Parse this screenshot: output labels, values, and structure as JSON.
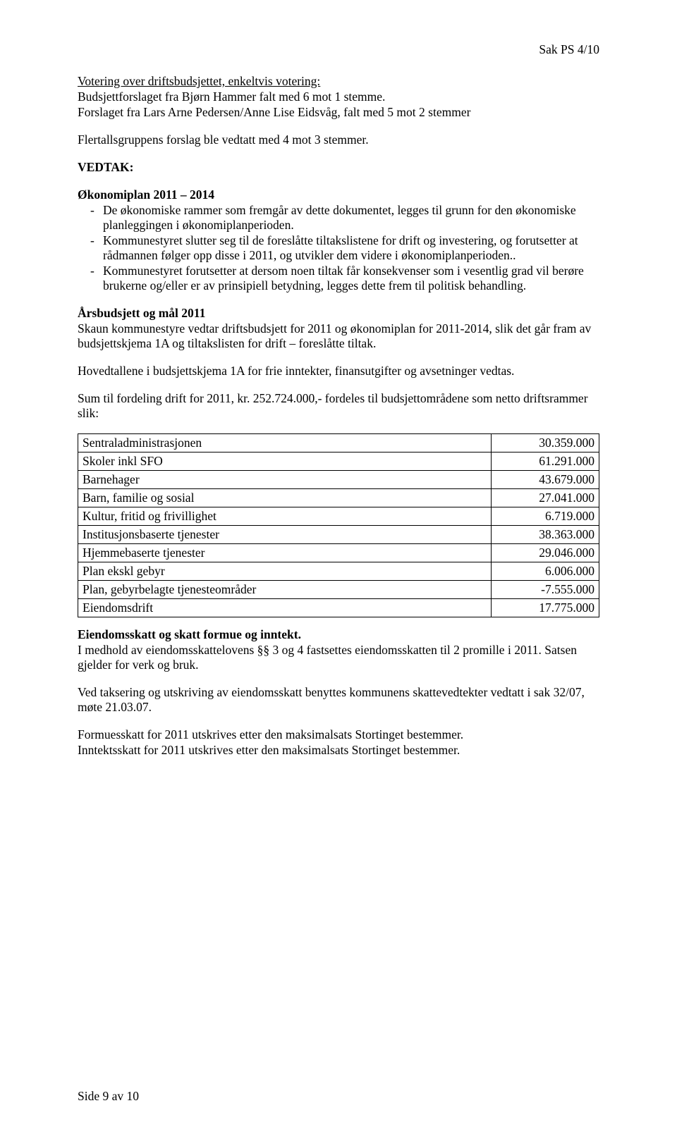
{
  "header": {
    "case_ref": "Sak PS  4/10"
  },
  "voting": {
    "line1": "Votering over driftsbudsjettet, enkeltvis votering:",
    "line2": "Budsjettforslaget fra Bjørn Hammer falt med 6 mot 1 stemme.",
    "line3": "Forslaget fra Lars Arne Pedersen/Anne Lise Eidsvåg, falt med 5 mot 2 stemmer"
  },
  "flertall": "Flertallsgruppens forslag ble vedtatt med 4 mot 3 stemmer.",
  "vedtak_label": "VEDTAK:",
  "okonomi": {
    "title": "Økonomiplan 2011 – 2014",
    "b1": "De økonomiske rammer som fremgår av dette dokumentet, legges til grunn for den økonomiske planleggingen i økonomiplanperioden.",
    "b2": "Kommunestyret slutter seg til de foreslåtte tiltakslistene for drift og investering, og forutsetter at rådmannen følger opp disse i 2011, og utvikler dem videre i økonomiplanperioden..",
    "b3": "Kommunestyret forutsetter at dersom noen tiltak får konsekvenser som i vesentlig grad vil berøre brukerne og/eller er av prinsipiell betydning, legges dette frem til politisk behandling."
  },
  "arsbudsjett": {
    "title": " Årsbudsjett og mål 2011",
    "p1": "Skaun kommunestyre vedtar driftsbudsjett for 2011 og økonomiplan for 2011-2014, slik det går fram av budsjettskjema 1A og tiltakslisten for drift – foreslåtte tiltak.",
    "p2": "Hovedtallene i budsjettskjema 1A for frie inntekter, finansutgifter og avsetninger vedtas.",
    "p3": "Sum til fordeling drift for 2011, kr. 252.724.000,- fordeles til budsjettområdene som netto driftsrammer slik:"
  },
  "table": {
    "rows": [
      {
        "label": "Sentraladministrasjonen",
        "value": "30.359.000"
      },
      {
        "label": "Skoler inkl SFO",
        "value": "61.291.000"
      },
      {
        "label": "Barnehager",
        "value": "43.679.000"
      },
      {
        "label": "Barn, familie og sosial",
        "value": "27.041.000"
      },
      {
        "label": "Kultur, fritid og frivillighet",
        "value": "6.719.000"
      },
      {
        "label": "Institusjonsbaserte tjenester",
        "value": "38.363.000"
      },
      {
        "label": "Hjemmebaserte tjenester",
        "value": "29.046.000"
      },
      {
        "label": "Plan ekskl gebyr",
        "value": "6.006.000"
      },
      {
        "label": "Plan, gebyrbelagte tjenesteområder",
        "value": "-7.555.000"
      },
      {
        "label": "Eiendomsdrift",
        "value": "17.775.000"
      }
    ]
  },
  "skatt": {
    "title": "Eiendomsskatt og skatt formue og inntekt.",
    "p1": "I medhold av eiendomsskattelovens §§ 3 og 4 fastsettes eiendomsskatten til 2 promille i 2011. Satsen gjelder for verk og bruk.",
    "p2": "Ved taksering og utskriving av eiendomsskatt benyttes kommunens skattevedtekter vedtatt i sak 32/07, møte 21.03.07.",
    "p3": "Formuesskatt for 2011 utskrives etter den maksimalsats Stortinget bestemmer.",
    "p4": "Inntektsskatt for 2011 utskrives etter den maksimalsats Stortinget bestemmer."
  },
  "footer": "Side 9 av 10"
}
